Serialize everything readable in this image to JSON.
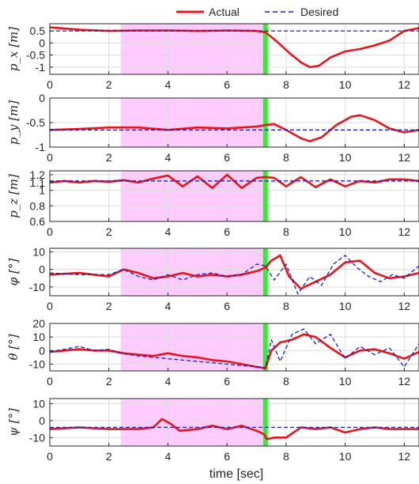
{
  "legend": {
    "actual": "Actual",
    "desired": "Desired"
  },
  "xlabel": "time [sec]",
  "colors": {
    "actual": "#e8141b",
    "desired": "#1420c8",
    "shade": "#ffccff",
    "event": "#33ee33"
  },
  "chart_data": {
    "type": "line",
    "xlim": [
      0,
      12.5
    ],
    "x_ticks": [
      0,
      2,
      4,
      6,
      8,
      10,
      12
    ],
    "shaded_region": [
      2.4,
      7.25
    ],
    "event_line": 7.3,
    "grid": true,
    "legend_position": "top-center",
    "xlabel": "time [sec]",
    "panels": [
      {
        "ylabel": "p_x [m]",
        "ylim": [
          -1.3,
          0.8
        ],
        "y_ticks": [
          0.5,
          0,
          -0.5,
          -1
        ],
        "y_tick_labels": [
          "0.5",
          "0",
          "-0.5",
          "-1"
        ],
        "series": [
          {
            "name": "Actual",
            "x": [
              0,
              1,
              2,
              3,
              4,
              5,
              6,
              7,
              7.3,
              7.7,
              8.1,
              8.5,
              8.8,
              9.1,
              9.5,
              10,
              10.5,
              11,
              11.5,
              12,
              12.5
            ],
            "y": [
              0.65,
              0.55,
              0.5,
              0.52,
              0.52,
              0.5,
              0.52,
              0.5,
              0.45,
              0.05,
              -0.4,
              -0.8,
              -1.0,
              -0.95,
              -0.6,
              -0.35,
              -0.25,
              -0.1,
              0.1,
              0.5,
              0.62
            ]
          },
          {
            "name": "Desired",
            "x": [
              0,
              12.5
            ],
            "y": [
              0.5,
              0.5
            ]
          }
        ]
      },
      {
        "ylabel": "p_y [m]",
        "ylim": [
          -1.0,
          0.0
        ],
        "y_ticks": [
          0,
          -0.5,
          -1
        ],
        "y_tick_labels": [
          "0",
          "-0.5",
          "-1"
        ],
        "series": [
          {
            "name": "Actual",
            "x": [
              0,
              1,
              2,
              3,
              4,
              5,
              6,
              7,
              7.3,
              7.6,
              8.0,
              8.5,
              8.8,
              9.2,
              9.7,
              10.2,
              10.5,
              11,
              11.5,
              12,
              12.5
            ],
            "y": [
              -0.65,
              -0.63,
              -0.6,
              -0.6,
              -0.65,
              -0.6,
              -0.62,
              -0.58,
              -0.55,
              -0.53,
              -0.65,
              -0.82,
              -0.88,
              -0.8,
              -0.55,
              -0.38,
              -0.35,
              -0.45,
              -0.62,
              -0.7,
              -0.65
            ]
          },
          {
            "name": "Desired",
            "x": [
              0,
              12.5
            ],
            "y": [
              -0.65,
              -0.65
            ]
          }
        ]
      },
      {
        "ylabel": "p_z [m]",
        "ylim": [
          0.6,
          1.25
        ],
        "y_ticks": [
          1.2,
          1.1,
          1,
          0.8,
          0.6
        ],
        "y_tick_labels": [
          "1.2",
          "1.1",
          "1",
          "0.8",
          "0.6"
        ],
        "series": [
          {
            "name": "Actual",
            "x": [
              0,
              0.5,
              1,
              1.5,
              2,
              2.5,
              3,
              3.5,
              4,
              4.5,
              5,
              5.5,
              6,
              6.5,
              7,
              7.3,
              7.6,
              8,
              8.5,
              9,
              9.5,
              10,
              10.5,
              11,
              11.5,
              12,
              12.5
            ],
            "y": [
              1.1,
              1.12,
              1.1,
              1.12,
              1.11,
              1.13,
              1.1,
              1.15,
              1.19,
              1.05,
              1.18,
              1.03,
              1.2,
              1.03,
              1.16,
              1.17,
              1.16,
              1.05,
              1.17,
              1.04,
              1.14,
              1.05,
              1.12,
              1.1,
              1.14,
              1.14,
              1.12
            ]
          },
          {
            "name": "Desired",
            "x": [
              0,
              12.5
            ],
            "y": [
              1.12,
              1.12
            ]
          }
        ]
      },
      {
        "ylabel": "φ [°]",
        "ylim": [
          -15,
          12
        ],
        "y_ticks": [
          10,
          0,
          -10
        ],
        "y_tick_labels": [
          "10",
          "0",
          "-10"
        ],
        "series": [
          {
            "name": "Actual",
            "x": [
              0,
              1,
              2,
              2.5,
              3,
              3.5,
              4,
              4.5,
              5,
              5.5,
              6,
              6.5,
              7,
              7.3,
              7.5,
              7.8,
              8.1,
              8.5,
              9,
              9.5,
              10,
              10.5,
              11,
              11.5,
              12,
              12.5
            ],
            "y": [
              -3,
              -2,
              -4,
              0,
              -2,
              -5,
              -4,
              -2,
              -4,
              -3,
              -4,
              -3,
              -1,
              1,
              5,
              8,
              -4,
              -11,
              -7,
              -3,
              4,
              5,
              -2,
              -5,
              -4,
              -2
            ]
          },
          {
            "name": "Desired",
            "x": [
              0,
              1,
              2,
              2.5,
              3,
              3.5,
              4,
              4.5,
              5,
              5.5,
              6,
              6.5,
              7,
              7.3,
              7.6,
              8,
              8.4,
              8.8,
              9.2,
              9.6,
              10,
              10.4,
              10.8,
              11.2,
              11.6,
              12,
              12.5
            ],
            "y": [
              -2,
              -3,
              -3,
              0,
              -4,
              -6,
              -3,
              -6,
              -3,
              -2,
              -4,
              -3,
              3,
              2,
              -6,
              3,
              -14,
              -4,
              -9,
              3,
              8,
              1,
              -4,
              -7,
              -3,
              -5,
              2
            ]
          }
        ]
      },
      {
        "ylabel": "θ [°]",
        "ylim": [
          -15,
          20
        ],
        "y_ticks": [
          20,
          10,
          0,
          -10
        ],
        "y_tick_labels": [
          "20",
          "10",
          "0",
          "-10"
        ],
        "series": [
          {
            "name": "Actual",
            "x": [
              0,
              0.5,
              1,
              1.5,
              2,
              2.5,
              3,
              3.5,
              4,
              4.5,
              5,
              5.5,
              6,
              6.5,
              7,
              7.3,
              7.5,
              7.8,
              8.2,
              8.6,
              9,
              9.5,
              10,
              10.5,
              11,
              11.5,
              12,
              12.5
            ],
            "y": [
              -1,
              0,
              1,
              0,
              0,
              -2,
              -3,
              -4,
              -2,
              -4,
              -5,
              -7,
              -8,
              -10,
              -12,
              -13,
              0,
              6,
              8,
              12,
              10,
              2,
              -5,
              0,
              1,
              -2,
              -6,
              -1
            ]
          },
          {
            "name": "Desired",
            "x": [
              0,
              0.5,
              1,
              1.5,
              2,
              2.4,
              3,
              4,
              5,
              6,
              7,
              7.3,
              7.5,
              7.8,
              8.2,
              8.6,
              9,
              9.5,
              10,
              10.5,
              11,
              11.5,
              12,
              12.5
            ],
            "y": [
              -1,
              1,
              3,
              0,
              1,
              -2,
              -4,
              -6,
              -8,
              -10,
              -12,
              -13,
              8,
              -8,
              12,
              16,
              5,
              12,
              -6,
              3,
              -3,
              2,
              -12,
              5
            ]
          }
        ]
      },
      {
        "ylabel": "ψ [°]",
        "ylim": [
          -15,
          13
        ],
        "y_ticks": [
          10,
          0,
          -10
        ],
        "y_tick_labels": [
          "10",
          "0",
          "-10"
        ],
        "series": [
          {
            "name": "Actual",
            "x": [
              0,
              1,
              2,
              2.5,
              3,
              3.5,
              3.8,
              4.1,
              4.4,
              5,
              5.5,
              6,
              6.5,
              7,
              7.25,
              7.35,
              7.6,
              8,
              8.5,
              9,
              9.5,
              10,
              10.5,
              11,
              11.5,
              12,
              12.5
            ],
            "y": [
              -5,
              -4,
              -5,
              -5,
              -5,
              -4,
              1,
              -2,
              -6,
              -5,
              -3,
              -5,
              -3,
              -6,
              -8,
              -11,
              -10,
              -10,
              -4,
              -5,
              -4,
              -7,
              -5,
              -4,
              -5,
              -5,
              -5
            ]
          },
          {
            "name": "Desired",
            "x": [
              0,
              12.5
            ],
            "y": [
              -4,
              -4
            ]
          }
        ]
      }
    ]
  }
}
